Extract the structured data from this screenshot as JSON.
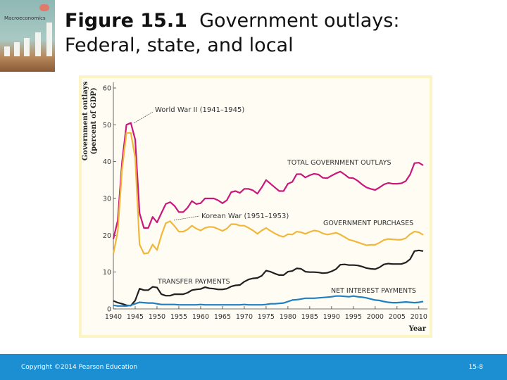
{
  "slide": {
    "title_bold": "Figure 15.1",
    "title_rest": "Government outlays:",
    "title_line2": "Federal, state, and local",
    "cover_logo_text": "Macroeconomics",
    "footer_copyright": "Copyright ©2014 Pearson Education",
    "page_number": "15-8"
  },
  "colors": {
    "total": "#c8187c",
    "purchases": "#f0b73c",
    "transfer": "#231f20",
    "interest": "#1e7fc3",
    "footer": "#1b8fd2"
  },
  "chart_data": {
    "type": "line",
    "ylabel": "Government outlays (percent of GDP)",
    "ylabel_line1": "Government outlays",
    "ylabel_line2": "(percent of GDP)",
    "xlabel": "Year",
    "xlim": [
      1940,
      2011
    ],
    "ylim": [
      0,
      60
    ],
    "x_ticks": [
      "1940",
      "1945",
      "1950",
      "1955",
      "1960",
      "1965",
      "1970",
      "1975",
      "1980",
      "1985",
      "1990",
      "1995",
      "2000",
      "2005",
      "2010"
    ],
    "y_ticks": [
      "0",
      "10",
      "20",
      "30",
      "40",
      "50",
      "60"
    ],
    "grid": false,
    "annotations": [
      {
        "text": "World War II (1941–1945)",
        "year": 1944,
        "value": 50.5
      },
      {
        "text": "Korean War (1951–1953)",
        "year": 1953,
        "value": 23.8
      }
    ],
    "x_start": 1940,
    "series": [
      {
        "name": "TOTAL GOVERNMENT OUTLAYS",
        "key": "total",
        "values": [
          19,
          24,
          40,
          50,
          50.5,
          46,
          26,
          22,
          22,
          25,
          23.5,
          26,
          28.5,
          29,
          28,
          26.3,
          26.3,
          27.5,
          29.3,
          28.5,
          28.7,
          30,
          30,
          30,
          29.5,
          28.7,
          29.5,
          31.7,
          32,
          31.5,
          32.6,
          32.6,
          32.2,
          31.3,
          33,
          35,
          34,
          33,
          32,
          32,
          34,
          34.5,
          36.6,
          36.6,
          35.7,
          36.3,
          36.7,
          36.5,
          35.6,
          35.5,
          36.2,
          36.8,
          37.3,
          36.5,
          35.6,
          35.5,
          34.8,
          33.8,
          33,
          32.6,
          32.3,
          33,
          33.8,
          34.2,
          34,
          34,
          34.1,
          34.7,
          36.5,
          39.6,
          39.7,
          39
        ]
      },
      {
        "name": "GOVERNMENT PURCHASES",
        "key": "purchases",
        "values": [
          15,
          21,
          38,
          47.8,
          47.8,
          41,
          17.5,
          15,
          15.2,
          17.5,
          16,
          20,
          23.3,
          23.8,
          22.5,
          21,
          21,
          21.6,
          22.6,
          21.8,
          21.3,
          22,
          22.3,
          22.2,
          21.7,
          21.2,
          21.8,
          23,
          23,
          22.6,
          22.6,
          22,
          21.3,
          20.4,
          21.3,
          22,
          21.2,
          20.5,
          19.9,
          19.6,
          20.3,
          20.2,
          21,
          20.8,
          20.4,
          20.9,
          21.3,
          21.1,
          20.5,
          20.2,
          20.4,
          20.7,
          20.2,
          19.5,
          18.8,
          18.5,
          18.1,
          17.7,
          17.3,
          17.4,
          17.4,
          18,
          18.7,
          19,
          18.9,
          18.8,
          18.8,
          19.2,
          20.3,
          21,
          20.8,
          20.1
        ]
      },
      {
        "name": "TRANSFER PAYMENTS",
        "key": "transfer",
        "values": [
          2.2,
          1.7,
          1.4,
          1,
          0.9,
          2.3,
          5.5,
          5.1,
          5.1,
          6,
          5.8,
          4,
          3.6,
          3.6,
          4,
          4,
          4,
          4.4,
          5.1,
          5.3,
          5.4,
          5.9,
          5.6,
          5.5,
          5.3,
          5.3,
          5.5,
          6.1,
          6.4,
          6.5,
          7.4,
          8,
          8.3,
          8.4,
          9,
          10.4,
          10.1,
          9.6,
          9.2,
          9.2,
          10.1,
          10.3,
          11,
          10.9,
          10.1,
          10,
          10,
          9.9,
          9.7,
          9.8,
          10.2,
          10.8,
          12,
          12.1,
          11.9,
          11.9,
          11.8,
          11.5,
          11.1,
          10.9,
          10.8,
          11.3,
          12.1,
          12.3,
          12.2,
          12.2,
          12.2,
          12.6,
          13.5,
          15.7,
          15.9,
          15.7
        ]
      },
      {
        "name": "NET INTEREST PAYMENTS",
        "key": "interest",
        "values": [
          1,
          0.8,
          0.8,
          0.8,
          1,
          1.4,
          1.8,
          1.7,
          1.6,
          1.6,
          1.4,
          1.2,
          1.2,
          1.2,
          1.2,
          1.1,
          1.1,
          1.1,
          1.1,
          1.1,
          1.2,
          1.1,
          1.1,
          1.1,
          1.1,
          1.1,
          1.1,
          1.1,
          1.1,
          1.1,
          1.2,
          1.1,
          1.1,
          1.1,
          1.1,
          1.2,
          1.4,
          1.4,
          1.5,
          1.6,
          2,
          2.4,
          2.5,
          2.7,
          2.9,
          2.9,
          2.9,
          3,
          3.1,
          3.2,
          3.3,
          3.5,
          3.5,
          3.4,
          3.3,
          3.5,
          3.3,
          3.2,
          3,
          2.7,
          2.4,
          2.3,
          2,
          1.8,
          1.7,
          1.7,
          1.8,
          1.9,
          1.8,
          1.7,
          1.8,
          2
        ]
      }
    ]
  }
}
